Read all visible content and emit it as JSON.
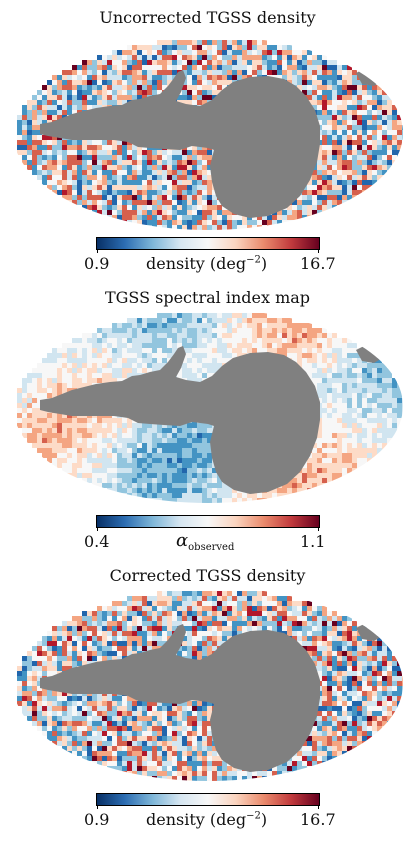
{
  "colors": {
    "mask": "#808080",
    "colormap": [
      "#053061",
      "#2166ac",
      "#4393c3",
      "#92c5de",
      "#d1e5f0",
      "#f7f7f7",
      "#fddbc7",
      "#f4a582",
      "#d6604d",
      "#b2182b",
      "#67001f"
    ]
  },
  "chart_data": [
    {
      "type": "heatmap",
      "projection": "Mollweide",
      "title": "Uncorrected TGSS density",
      "colorbar": {
        "min_label": "0.9",
        "max_label": "16.7",
        "label_text": "density (deg",
        "label_exponent": "−2",
        "label_close": ")",
        "vmin": 0.9,
        "vmax": 16.7
      },
      "masked_region": "grey (no data)",
      "texture": "noisy"
    },
    {
      "type": "heatmap",
      "projection": "Mollweide",
      "title": "TGSS spectral index map",
      "colorbar": {
        "min_label": "0.4",
        "max_label": "1.1",
        "label_symbol": "α",
        "label_subscript": "observed",
        "vmin": 0.4,
        "vmax": 1.1
      },
      "masked_region": "grey (no data)",
      "texture": "smooth-structured"
    },
    {
      "type": "heatmap",
      "projection": "Mollweide",
      "title": "Corrected TGSS density",
      "colorbar": {
        "min_label": "0.9",
        "max_label": "16.7",
        "label_text": "density (deg",
        "label_exponent": "−2",
        "label_close": ")",
        "vmin": 0.9,
        "vmax": 16.7
      },
      "masked_region": "grey (no data)",
      "texture": "noisy"
    }
  ]
}
